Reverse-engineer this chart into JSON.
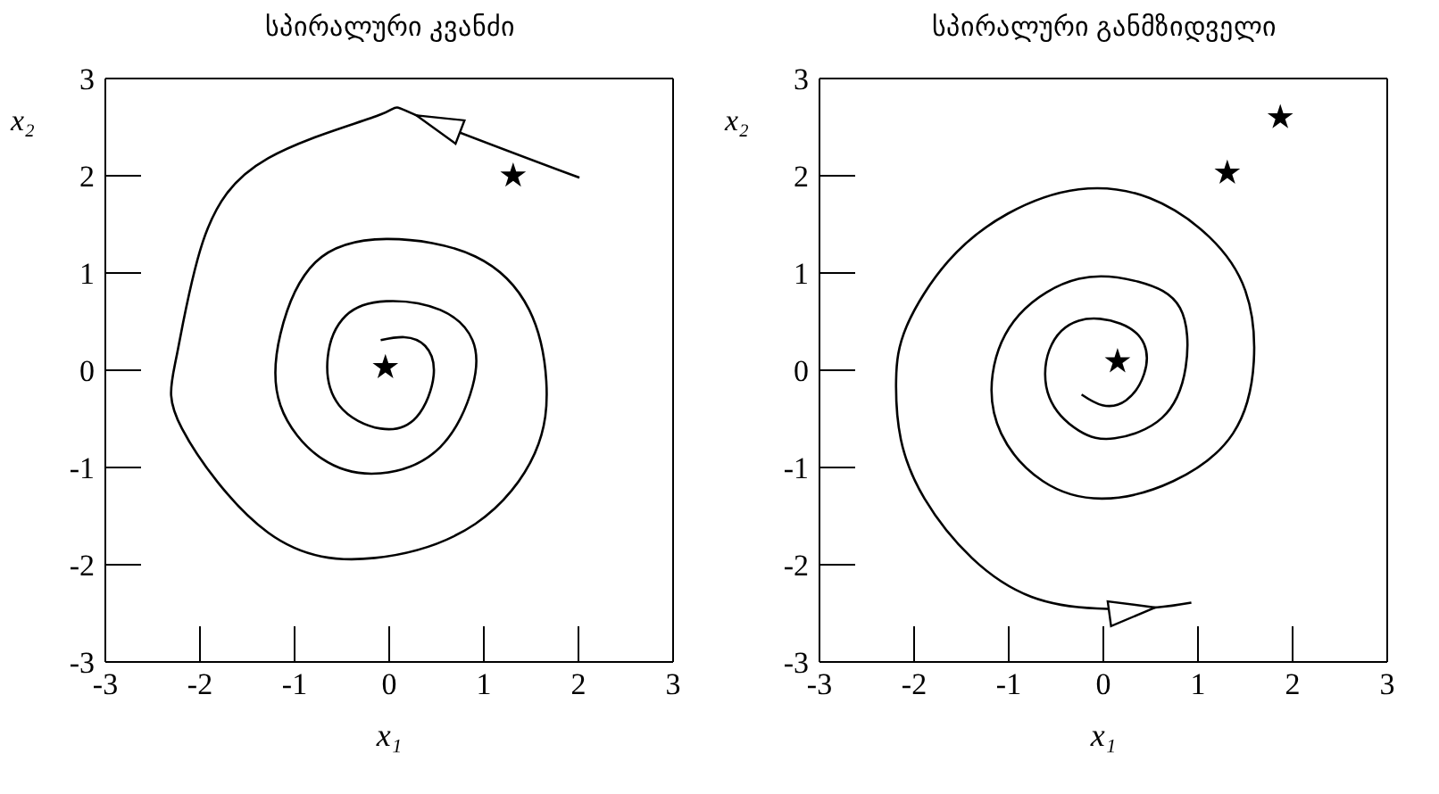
{
  "chart_data": [
    {
      "type": "scatter",
      "title": "სპირალური კვანძი",
      "xlabel": "x₁",
      "ylabel": "x₂",
      "xlim": [
        -3,
        3
      ],
      "ylim": [
        -3,
        3
      ],
      "xticks": [
        -3,
        -2,
        -1,
        0,
        1,
        2,
        3
      ],
      "yticks": [
        -3,
        -2,
        -1,
        0,
        1,
        2,
        3
      ],
      "grid": false,
      "legend": false,
      "series": [
        {
          "type": "line",
          "color": "#000000",
          "marker": "none",
          "x": [
            2.01,
            0.29,
            -0.09,
            -1.28,
            -1.97,
            -2.25,
            -2.19,
            -1.28,
            -0.15,
            0.91,
            1.54,
            1.66,
            1.48,
            0.91,
            -0.03,
            -0.78,
            -1.15,
            -1.15,
            -0.71,
            -0.09,
            0.54,
            0.88,
            0.88,
            0.54,
            -0.03,
            -0.46,
            -0.65,
            -0.53,
            -0.09,
            0.29,
            0.47,
            0.38,
            0.16,
            -0.09
          ],
          "values": [
            1.98,
            2.62,
            2.63,
            2.18,
            1.32,
            0.13,
            -0.6,
            -1.67,
            -1.93,
            -1.58,
            -0.85,
            -0.11,
            0.62,
            1.17,
            1.35,
            1.11,
            0.37,
            -0.36,
            -0.91,
            -1.06,
            -0.79,
            -0.17,
            0.31,
            0.62,
            0.71,
            0.56,
            0.13,
            -0.36,
            -0.6,
            -0.48,
            -0.05,
            0.25,
            0.34,
            0.31
          ]
        },
        {
          "type": "scatter",
          "color": "#000000",
          "marker": "star",
          "x": [
            1.31,
            -0.04
          ],
          "values": [
            2.0,
            0.03
          ]
        }
      ]
    },
    {
      "type": "scatter",
      "title": "სპირალური განმზიდველი",
      "xlabel": "x₁",
      "ylabel": "x₂",
      "xlim": [
        -3,
        3
      ],
      "ylim": [
        -3,
        3
      ],
      "xticks": [
        -3,
        -2,
        -1,
        0,
        1,
        2,
        3
      ],
      "yticks": [
        -3,
        -2,
        -1,
        0,
        1,
        2,
        3
      ],
      "grid": false,
      "legend": false,
      "series": [
        {
          "type": "line",
          "color": "#000000",
          "marker": "none",
          "x": [
            -0.23,
            -0.01,
            0.24,
            0.43,
            0.43,
            0.18,
            -0.26,
            -0.57,
            -0.57,
            -0.26,
            0.12,
            0.62,
            0.87,
            0.81,
            0.37,
            -0.26,
            -0.89,
            -1.17,
            -1.08,
            -0.64,
            -0.01,
            0.74,
            1.37,
            1.59,
            1.5,
            1.12,
            0.49,
            -0.26,
            -1.01,
            -1.64,
            -2.08,
            -2.19,
            -2.14,
            -1.89,
            -1.39,
            -0.76,
            -0.07,
            0.55,
            0.93
          ],
          "values": [
            -0.25,
            -0.36,
            -0.31,
            -0.04,
            0.27,
            0.48,
            0.51,
            0.21,
            -0.28,
            -0.62,
            -0.7,
            -0.49,
            0.03,
            0.64,
            0.91,
            0.94,
            0.57,
            -0.04,
            -0.65,
            -1.14,
            -1.32,
            -1.14,
            -0.65,
            0.09,
            0.82,
            1.37,
            1.77,
            1.86,
            1.61,
            1.12,
            0.45,
            -0.1,
            -0.71,
            -1.32,
            -1.93,
            -2.33,
            -2.45,
            -2.44,
            -2.39
          ]
        },
        {
          "type": "scatter",
          "color": "#000000",
          "marker": "star",
          "x": [
            0.15,
            1.31,
            1.87
          ],
          "values": [
            0.09,
            2.03,
            2.6
          ]
        }
      ]
    }
  ]
}
